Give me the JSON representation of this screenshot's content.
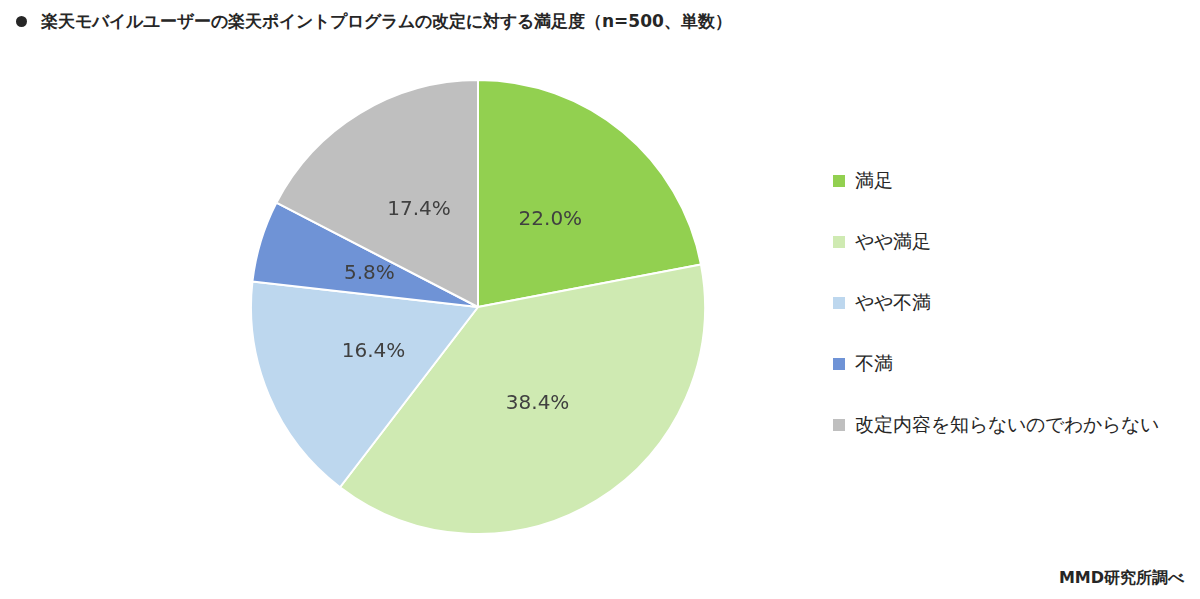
{
  "chart_data": {
    "type": "pie",
    "title": "楽天モバイルユーザーの楽天ポイントプログラムの改定に対する満足度（n=500、単数）",
    "categories": [
      "満足",
      "やや満足",
      "やや不満",
      "不満",
      "改定内容を知らないのでわからない"
    ],
    "values": [
      22.0,
      38.4,
      16.4,
      5.8,
      17.4
    ],
    "value_labels": [
      "22.0%",
      "38.4%",
      "16.4%",
      "5.8%",
      "17.4%"
    ],
    "colors": [
      "#92d050",
      "#cfeab2",
      "#bdd7ee",
      "#6f93d6",
      "#bfbfbf"
    ],
    "data_labels": true,
    "legend": "right",
    "source": "MMD研究所調べ"
  }
}
